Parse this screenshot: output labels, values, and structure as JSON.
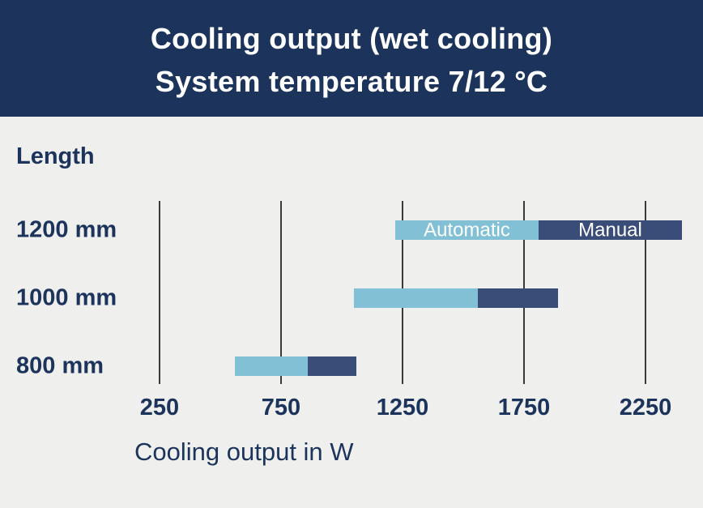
{
  "header": {
    "title_line1": "Cooling output (wet cooling)",
    "title_line2": "System temperature 7/12 °C"
  },
  "chart_data": {
    "type": "bar",
    "orientation": "horizontal-stacked-range",
    "title": "Cooling output (wet cooling) System temperature 7/12 °C",
    "ylabel": "Length",
    "xlabel": "Cooling output in W",
    "xticks": [
      250,
      750,
      1250,
      1750,
      2250
    ],
    "xlim": [
      250,
      2250
    ],
    "grid": "vertical lines at ticks",
    "categories": [
      "1200 mm",
      "1000 mm",
      "800 mm"
    ],
    "series": [
      {
        "name": "Automatic",
        "color": "#82c1d5",
        "ranges": [
          [
            1220,
            1810
          ],
          [
            1050,
            1560
          ],
          [
            560,
            860
          ]
        ]
      },
      {
        "name": "Manual",
        "color": "#3a4c78",
        "ranges": [
          [
            1810,
            2400
          ],
          [
            1560,
            1890
          ],
          [
            860,
            1060
          ]
        ]
      }
    ],
    "bar_labels": {
      "category": "1200 mm",
      "labels": [
        "Automatic",
        "Manual"
      ]
    }
  },
  "colors": {
    "header_bg": "#1c345c",
    "page_bg": "#efefed",
    "text_dark": "#1c345c",
    "grid": "#3a3a3a"
  }
}
